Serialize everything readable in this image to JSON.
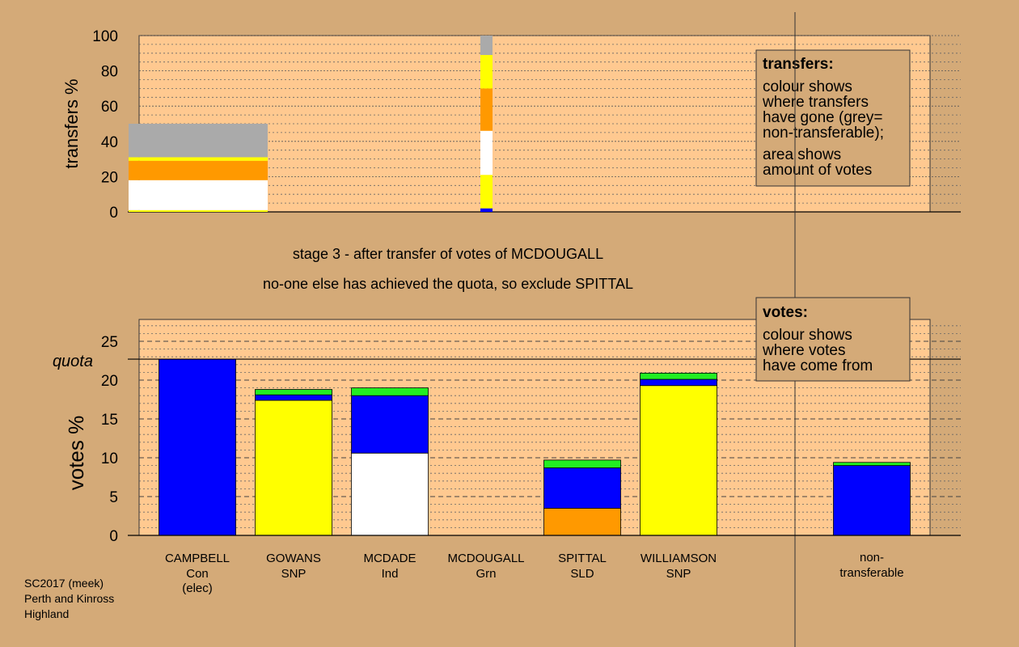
{
  "colors": {
    "background": "#d4aa78",
    "plot_bg": "#ffc990",
    "Con": "#0000ff",
    "SNP": "#ffff00",
    "Ind": "#ffffff",
    "Grn": "#22ee22",
    "SLD": "#ff9900",
    "nontransferable": "#aaaaaa"
  },
  "captions": {
    "stage": "stage 3 - after transfer of votes of MCDOUGALL",
    "action": "no-one else has achieved the quota, so exclude SPITTAL"
  },
  "legend_transfers": {
    "title": "transfers:",
    "lines": [
      "colour shows",
      "where transfers",
      "have gone (grey=",
      "non-transferable);",
      "area shows",
      "amount of votes"
    ]
  },
  "legend_votes": {
    "title": "votes:",
    "lines": [
      "colour shows",
      "where votes",
      "have come from"
    ]
  },
  "footer": [
    "SC2017 (meek)",
    "Perth and Kinross",
    "Highland"
  ],
  "chart_data": [
    {
      "type": "bar",
      "name": "transfers",
      "ylabel": "transfers %",
      "ylim": [
        0,
        100
      ],
      "yticks": [
        0,
        20,
        40,
        60,
        80,
        100
      ],
      "bars": [
        {
          "category": "CAMPBELL",
          "stacked": true,
          "segments": [
            {
              "party": "SNP",
              "from": 0,
              "to": 1
            },
            {
              "party": "Ind",
              "from": 1,
              "to": 18
            },
            {
              "party": "SLD",
              "from": 18,
              "to": 29
            },
            {
              "party": "SNP",
              "from": 29,
              "to": 31
            },
            {
              "party": "nontransferable",
              "from": 31,
              "to": 50
            }
          ]
        },
        {
          "category": "MCDOUGALL",
          "stacked": true,
          "segments": [
            {
              "party": "Con",
              "from": 0,
              "to": 2
            },
            {
              "party": "SNP",
              "from": 2,
              "to": 21
            },
            {
              "party": "Ind",
              "from": 21,
              "to": 46
            },
            {
              "party": "SLD",
              "from": 46,
              "to": 70
            },
            {
              "party": "SNP",
              "from": 70,
              "to": 89
            },
            {
              "party": "nontransferable",
              "from": 89,
              "to": 100
            }
          ]
        }
      ]
    },
    {
      "type": "bar",
      "name": "votes",
      "ylabel": "votes %",
      "ylim": [
        0,
        27.5
      ],
      "yticks": [
        0,
        5,
        10,
        15,
        20,
        25
      ],
      "quota_label": "quota",
      "quota": 22.7,
      "categories": [
        {
          "name": "CAMPBELL",
          "party": "Con",
          "note": "(elec)",
          "segments": [
            {
              "party": "Con",
              "value": 22.7
            }
          ]
        },
        {
          "name": "GOWANS",
          "party": "SNP",
          "note": "",
          "segments": [
            {
              "party": "SNP",
              "value": 17.4
            },
            {
              "party": "Con",
              "value": 0.7
            },
            {
              "party": "Grn",
              "value": 0.7
            }
          ]
        },
        {
          "name": "MCDADE",
          "party": "Ind",
          "note": "",
          "segments": [
            {
              "party": "Ind",
              "value": 10.6
            },
            {
              "party": "Con",
              "value": 7.4
            },
            {
              "party": "Grn",
              "value": 1.0
            }
          ]
        },
        {
          "name": "MCDOUGALL",
          "party": "Grn",
          "note": "",
          "segments": []
        },
        {
          "name": "SPITTAL",
          "party": "SLD",
          "note": "",
          "segments": [
            {
              "party": "SLD",
              "value": 3.5
            },
            {
              "party": "Con",
              "value": 5.2
            },
            {
              "party": "Grn",
              "value": 1.0
            }
          ]
        },
        {
          "name": "WILLIAMSON",
          "party": "SNP",
          "note": "",
          "segments": [
            {
              "party": "SNP",
              "value": 19.3
            },
            {
              "party": "Con",
              "value": 0.8
            },
            {
              "party": "Grn",
              "value": 0.8
            }
          ]
        }
      ],
      "nontransferable": {
        "label_lines": [
          "non-",
          "transferable"
        ],
        "segments": [
          {
            "party": "Con",
            "value": 9.0
          },
          {
            "party": "Grn",
            "value": 0.4
          }
        ]
      }
    }
  ]
}
